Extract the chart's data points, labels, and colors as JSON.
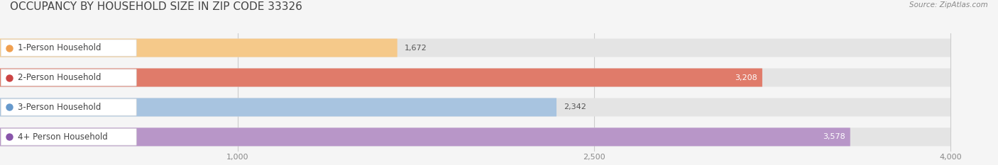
{
  "title": "OCCUPANCY BY HOUSEHOLD SIZE IN ZIP CODE 33326",
  "source": "Source: ZipAtlas.com",
  "categories": [
    "1-Person Household",
    "2-Person Household",
    "3-Person Household",
    "4+ Person Household"
  ],
  "values": [
    1672,
    3208,
    2342,
    3578
  ],
  "bar_colors": [
    "#f5c98a",
    "#e07b6a",
    "#a8c4e0",
    "#b896c8"
  ],
  "value_colors": [
    "#555555",
    "#ffffff",
    "#555555",
    "#ffffff"
  ],
  "dot_colors": [
    "#f0a050",
    "#cc4444",
    "#6699cc",
    "#8855aa"
  ],
  "xlim_min": 0,
  "xlim_max": 4200,
  "xticks": [
    1000,
    2500,
    4000
  ],
  "bg_color": "#f5f5f5",
  "bar_bg_color": "#e4e4e4",
  "title_fontsize": 11,
  "label_fontsize": 8.5,
  "value_fontsize": 8,
  "source_fontsize": 7.5,
  "title_color": "#444444",
  "source_color": "#888888",
  "tick_color": "#888888"
}
